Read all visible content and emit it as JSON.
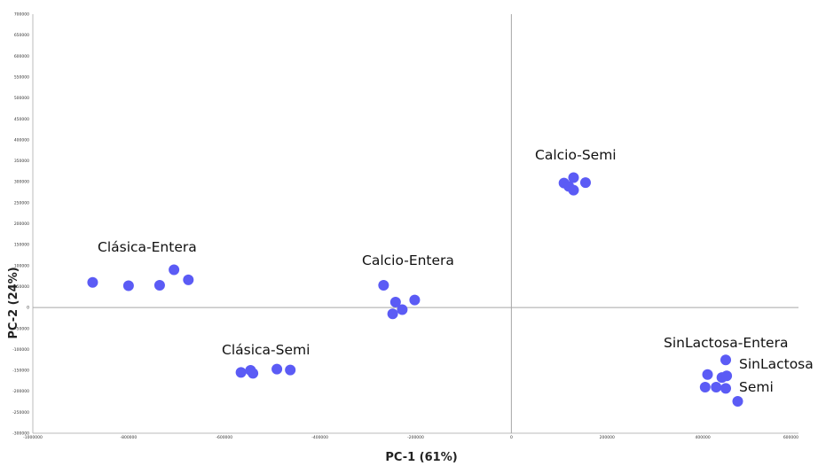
{
  "chart_data": {
    "type": "scatter",
    "title": "",
    "xlabel": "PC-1 (61%)",
    "ylabel": "PC-2 (24%)",
    "xlim": [
      -1000000,
      600000
    ],
    "ylim": [
      -300000,
      700000
    ],
    "x_ticks": [
      "-1000000",
      "-800000",
      "-600000",
      "-400000",
      "-200000",
      "0",
      "200000",
      "400000",
      "600000"
    ],
    "y_ticks": [
      "700000",
      "650000",
      "600000",
      "550000",
      "500000",
      "450000",
      "400000",
      "350000",
      "300000",
      "250000",
      "200000",
      "150000",
      "100000",
      "50000",
      "0",
      "-50000",
      "-100000",
      "-150000",
      "-200000",
      "-250000",
      "-300000"
    ],
    "grid": false,
    "point_color": "#5b5bf5",
    "reference_lines": {
      "x": 0,
      "y": 0
    },
    "group_labels": [
      "Clásica-Entera",
      "Clásica-Semi",
      "Calcio-Entera",
      "Calcio-Semi",
      "SinLactosa-Entera",
      "SinLactosa",
      "Semi"
    ],
    "points": [
      {
        "x": -875000,
        "y": 60000
      },
      {
        "x": -800000,
        "y": 52000
      },
      {
        "x": -735000,
        "y": 53000
      },
      {
        "x": -705000,
        "y": 90000
      },
      {
        "x": -675000,
        "y": 66000
      },
      {
        "x": -565000,
        "y": -155000
      },
      {
        "x": -545000,
        "y": -150000
      },
      {
        "x": -540000,
        "y": -157000
      },
      {
        "x": -490000,
        "y": -147000
      },
      {
        "x": -462000,
        "y": -149000
      },
      {
        "x": -267000,
        "y": 53000
      },
      {
        "x": -242000,
        "y": 13000
      },
      {
        "x": -228000,
        "y": -5000
      },
      {
        "x": -248000,
        "y": -15000
      },
      {
        "x": -202000,
        "y": 18000
      },
      {
        "x": 110000,
        "y": 297000
      },
      {
        "x": 120000,
        "y": 289000
      },
      {
        "x": 130000,
        "y": 310000
      },
      {
        "x": 130000,
        "y": 280000
      },
      {
        "x": 155000,
        "y": 298000
      },
      {
        "x": 405000,
        "y": -190000
      },
      {
        "x": 410000,
        "y": -160000
      },
      {
        "x": 428000,
        "y": -190000
      },
      {
        "x": 440000,
        "y": -167000
      },
      {
        "x": 448000,
        "y": -125000
      },
      {
        "x": 450000,
        "y": -163000
      },
      {
        "x": 448000,
        "y": -193000
      },
      {
        "x": 473000,
        "y": -224000
      }
    ]
  }
}
